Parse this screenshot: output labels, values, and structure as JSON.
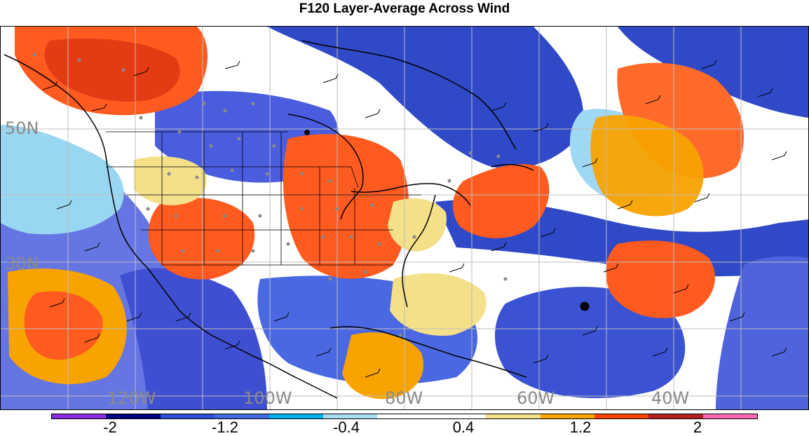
{
  "title": "F120 Layer-Average Across Wind",
  "map": {
    "latitude_labels": [
      "50N",
      "30N"
    ],
    "longitude_labels": [
      "120W",
      "100W",
      "80W",
      "60W",
      "40W"
    ],
    "marker": "large black dot in the central Atlantic",
    "overlays": [
      "wind barbs",
      "gray observation dots",
      "political boundaries",
      "grid lines"
    ]
  },
  "colorbar": {
    "colors": [
      "#8a2be2",
      "#000080",
      "#2f4fd8",
      "#4169e1",
      "#00b0f0",
      "#a8ddf5",
      "#ffffff",
      "#ffffff",
      "#f5e08a",
      "#ffa500",
      "#ff4500",
      "#b22222",
      "#ff69b4"
    ],
    "labels": [
      "-2",
      "-1.2",
      "-0.4",
      "0.4",
      "1.2",
      "2"
    ],
    "levels": [
      -2.4,
      -2,
      -1.6,
      -1.2,
      -0.8,
      -0.4,
      0,
      0.4,
      0.8,
      1.2,
      1.6,
      2,
      2.4
    ]
  }
}
